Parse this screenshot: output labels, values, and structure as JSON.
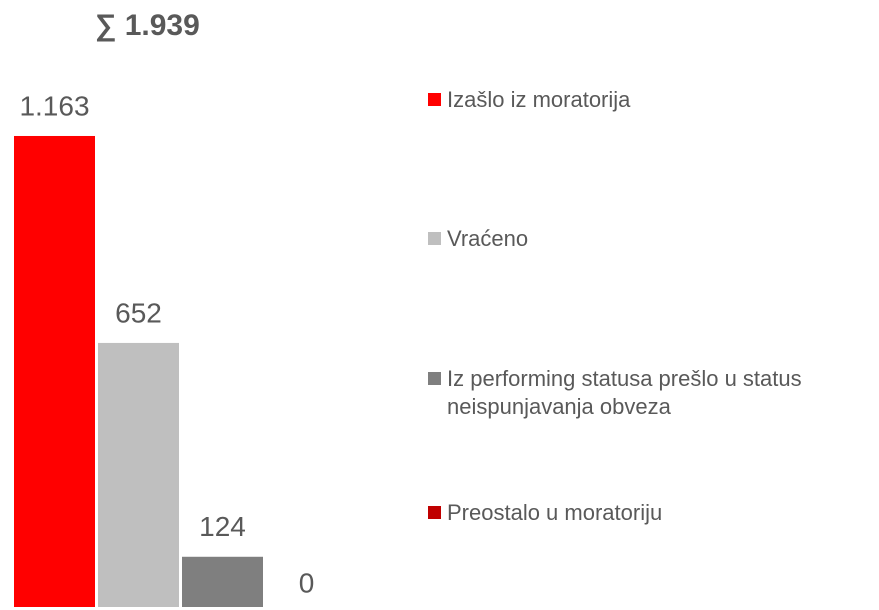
{
  "chart_data": {
    "type": "bar",
    "title": "∑ 1.939",
    "categories": [
      "Izašlo iz moratorija",
      "Vraćeno",
      "Iz performing statusa prešlo u status neispunjavanja obveza",
      "Preostalo u moratoriju"
    ],
    "values": [
      1163,
      652,
      124,
      0
    ],
    "value_labels": [
      "1.163",
      "652",
      "124",
      "0"
    ],
    "colors": [
      "#ff0000",
      "#bfbfbf",
      "#7f7f7f",
      "#c00000"
    ],
    "ylim": [
      0,
      1200
    ]
  }
}
